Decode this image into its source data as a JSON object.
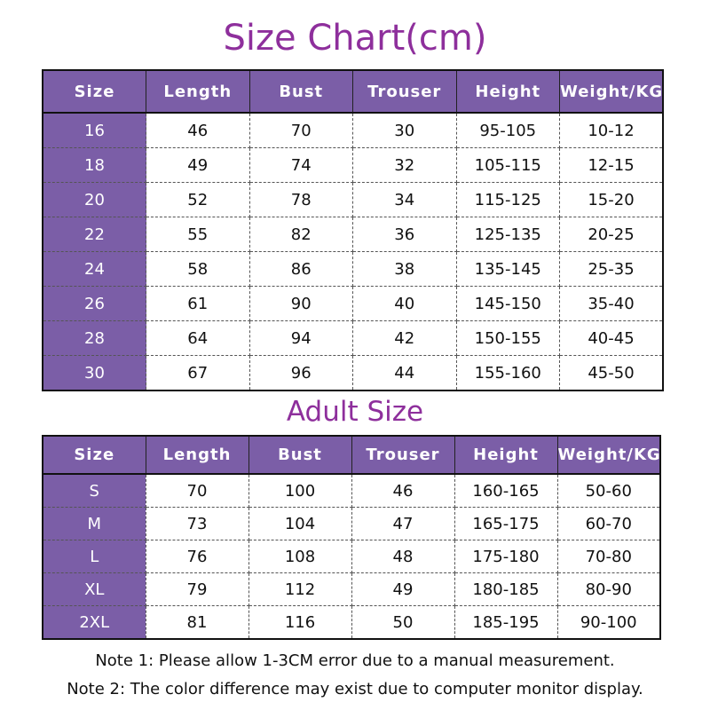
{
  "title": "Size Chart(cm)",
  "subtitle": "Adult Size",
  "colors": {
    "header_bg": "#7b5ea7",
    "title": "#8e2f9c"
  },
  "headers": [
    "Size",
    "Length",
    "Bust",
    "Trouser",
    "Height",
    "Weight/KG"
  ],
  "kids_rows": [
    [
      "16",
      "46",
      "70",
      "30",
      "95-105",
      "10-12"
    ],
    [
      "18",
      "49",
      "74",
      "32",
      "105-115",
      "12-15"
    ],
    [
      "20",
      "52",
      "78",
      "34",
      "115-125",
      "15-20"
    ],
    [
      "22",
      "55",
      "82",
      "36",
      "125-135",
      "20-25"
    ],
    [
      "24",
      "58",
      "86",
      "38",
      "135-145",
      "25-35"
    ],
    [
      "26",
      "61",
      "90",
      "40",
      "145-150",
      "35-40"
    ],
    [
      "28",
      "64",
      "94",
      "42",
      "150-155",
      "40-45"
    ],
    [
      "30",
      "67",
      "96",
      "44",
      "155-160",
      "45-50"
    ]
  ],
  "adult_rows": [
    [
      "S",
      "70",
      "100",
      "46",
      "160-165",
      "50-60"
    ],
    [
      "M",
      "73",
      "104",
      "47",
      "165-175",
      "60-70"
    ],
    [
      "L",
      "76",
      "108",
      "48",
      "175-180",
      "70-80"
    ],
    [
      "XL",
      "79",
      "112",
      "49",
      "180-185",
      "80-90"
    ],
    [
      "2XL",
      "81",
      "116",
      "50",
      "185-195",
      "90-100"
    ]
  ],
  "notes": [
    "Note 1: Please allow 1-3CM error due to a manual measurement.",
    "Note 2: The color difference may exist due to computer monitor display."
  ]
}
